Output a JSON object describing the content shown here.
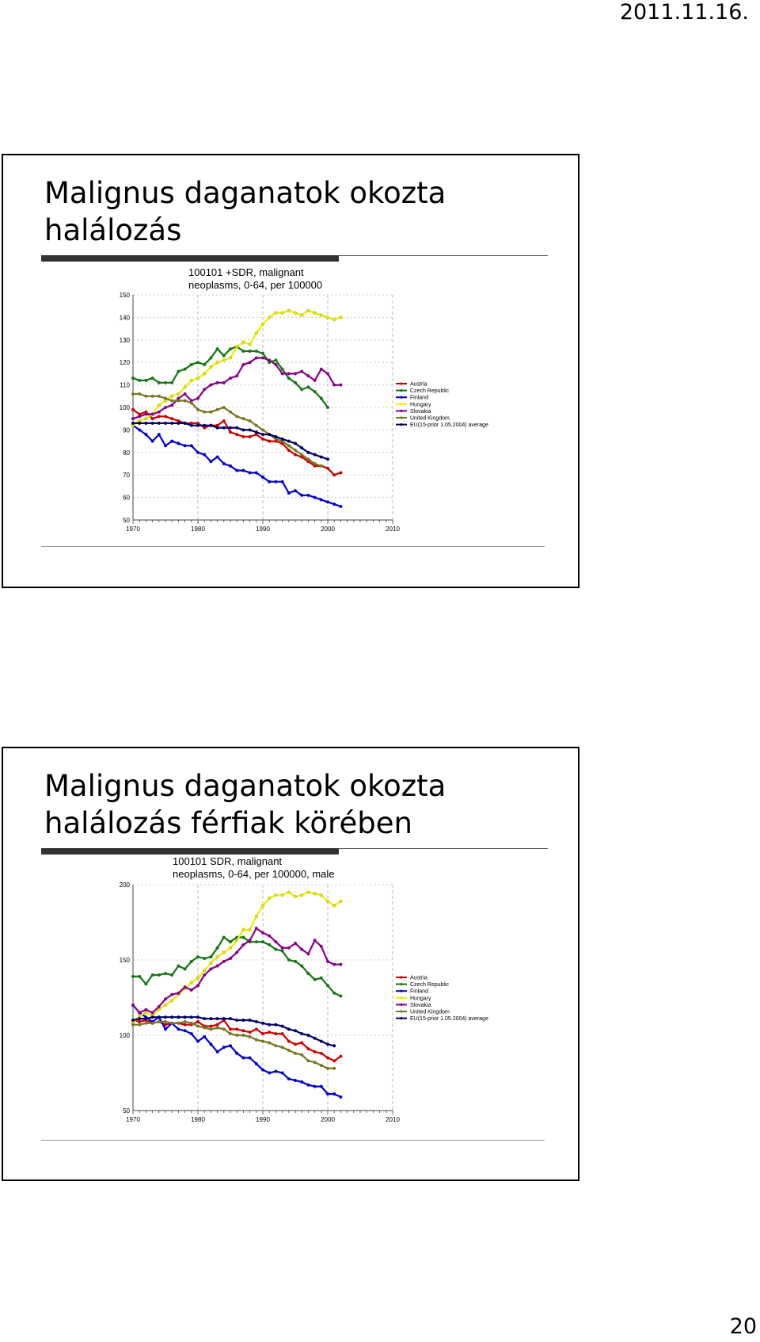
{
  "page": {
    "date": "2011.11.16.",
    "number": "20"
  },
  "slides": [
    {
      "title_line1": "Malignus daganatok okozta",
      "title_line2": "halálozás"
    },
    {
      "title_line1": "Malignus daganatok okozta",
      "title_line2": "halálozás férfiak körében"
    }
  ],
  "colors": {
    "Austria": "#cc0000",
    "Czech Republic": "#117711",
    "Finland": "#0000cc",
    "Hungary": "#eeee00",
    "Slovakia": "#880088",
    "United Kingdom": "#777722",
    "EU(15-prior 1.05.2004) average": "#000066"
  },
  "chart_data": [
    {
      "type": "line",
      "title_lines": [
        "100101 +SDR, malignant",
        "neoplasms, 0-64, per 100000"
      ],
      "xlim": [
        1970,
        2010
      ],
      "ylim": [
        50,
        150
      ],
      "xticks": [
        1970,
        1980,
        1990,
        2000,
        2010
      ],
      "yticks": [
        50,
        60,
        70,
        80,
        90,
        100,
        110,
        120,
        130,
        140,
        150
      ],
      "grid": true,
      "legend_position": "right",
      "series": [
        {
          "name": "Austria",
          "x0": 1970,
          "values": [
            99,
            97,
            98,
            95,
            96,
            96,
            95,
            94,
            93,
            93,
            93,
            91,
            92,
            92,
            94,
            89,
            88,
            87,
            87,
            88,
            86,
            85,
            85,
            84,
            81,
            79,
            78,
            76,
            74,
            74,
            73,
            70,
            71
          ]
        },
        {
          "name": "Czech Republic",
          "x0": 1970,
          "values": [
            113,
            112,
            112,
            113,
            111,
            111,
            111,
            116,
            117,
            119,
            120,
            119,
            122,
            126,
            123,
            126,
            127,
            125,
            125,
            125,
            124,
            120,
            121,
            117,
            113,
            111,
            108,
            109,
            107,
            104,
            100
          ]
        },
        {
          "name": "Finland",
          "x0": 1970,
          "values": [
            92,
            90,
            88,
            85,
            88,
            83,
            85,
            84,
            83,
            83,
            80,
            79,
            76,
            78,
            75,
            74,
            72,
            72,
            71,
            71,
            69,
            67,
            67,
            67,
            62,
            63,
            61,
            61,
            60,
            59,
            58,
            57,
            56
          ]
        },
        {
          "name": "Hungary",
          "x0": 1970,
          "values": [
            92,
            94,
            95,
            97,
            101,
            103,
            105,
            106,
            109,
            112,
            113,
            115,
            118,
            120,
            121,
            122,
            127,
            129,
            128,
            133,
            137,
            140,
            142,
            142,
            143,
            142,
            141,
            143,
            142,
            141,
            140,
            139,
            140
          ]
        },
        {
          "name": "Slovakia",
          "x0": 1970,
          "values": [
            95,
            96,
            97,
            97,
            98,
            100,
            101,
            104,
            106,
            103,
            104,
            108,
            110,
            111,
            111,
            113,
            114,
            119,
            120,
            122,
            122,
            121,
            119,
            115,
            115,
            115,
            116,
            114,
            112,
            117,
            115,
            110,
            110
          ]
        },
        {
          "name": "United Kingdom",
          "x0": 1970,
          "values": [
            106,
            106,
            105,
            105,
            105,
            104,
            103,
            103,
            103,
            102,
            99,
            98,
            98,
            99,
            100,
            98,
            96,
            95,
            94,
            92,
            90,
            88,
            86,
            85,
            83,
            81,
            79,
            77,
            75,
            74
          ]
        },
        {
          "name": "EU(15-prior 1.05.2004) average",
          "x0": 1970,
          "values": [
            93,
            93,
            93,
            93,
            93,
            93,
            93,
            93,
            93,
            92,
            92,
            92,
            92,
            91,
            91,
            91,
            91,
            90,
            90,
            89,
            88,
            88,
            87,
            86,
            85,
            84,
            82,
            80,
            79,
            78,
            77
          ]
        }
      ]
    },
    {
      "type": "line",
      "title_lines": [
        "100101 SDR, malignant",
        "neoplasms, 0-64, per 100000, male"
      ],
      "xlim": [
        1970,
        2010
      ],
      "ylim": [
        50,
        200
      ],
      "xticks": [
        1970,
        1980,
        1990,
        2000,
        2010
      ],
      "yticks": [
        50,
        100,
        150,
        200
      ],
      "grid": true,
      "legend_position": "right",
      "series": [
        {
          "name": "Austria",
          "x0": 1970,
          "values": [
            110,
            109,
            110,
            108,
            109,
            107,
            108,
            108,
            107,
            107,
            109,
            106,
            106,
            107,
            110,
            104,
            104,
            103,
            102,
            104,
            101,
            102,
            101,
            101,
            96,
            94,
            95,
            91,
            89,
            88,
            85,
            83,
            86
          ]
        },
        {
          "name": "Czech Republic",
          "x0": 1970,
          "values": [
            139,
            139,
            134,
            140,
            140,
            141,
            140,
            146,
            144,
            149,
            152,
            151,
            152,
            158,
            165,
            162,
            165,
            165,
            162,
            162,
            162,
            160,
            157,
            156,
            150,
            149,
            146,
            141,
            137,
            138,
            133,
            128,
            126
          ]
        },
        {
          "name": "Finland",
          "x0": 1970,
          "values": [
            120,
            115,
            112,
            109,
            112,
            104,
            108,
            104,
            103,
            101,
            96,
            99,
            94,
            89,
            92,
            93,
            88,
            85,
            85,
            81,
            77,
            75,
            76,
            75,
            71,
            70,
            69,
            67,
            66,
            66,
            61,
            61,
            59
          ]
        },
        {
          "name": "Hungary",
          "x0": 1970,
          "values": [
            108,
            113,
            115,
            113,
            117,
            120,
            123,
            127,
            131,
            135,
            138,
            143,
            148,
            152,
            155,
            158,
            163,
            170,
            170,
            179,
            186,
            191,
            193,
            193,
            195,
            192,
            193,
            195,
            194,
            193,
            189,
            186,
            189
          ]
        },
        {
          "name": "Slovakia",
          "x0": 1970,
          "values": [
            120,
            115,
            117,
            115,
            119,
            124,
            127,
            128,
            132,
            130,
            133,
            140,
            144,
            146,
            149,
            151,
            155,
            160,
            163,
            171,
            168,
            166,
            162,
            158,
            158,
            161,
            157,
            154,
            163,
            159,
            149,
            147,
            147
          ]
        },
        {
          "name": "United Kingdom",
          "x0": 1970,
          "values": [
            107,
            107,
            108,
            108,
            109,
            109,
            108,
            108,
            109,
            108,
            106,
            105,
            104,
            105,
            104,
            101,
            100,
            100,
            99,
            97,
            96,
            95,
            93,
            92,
            90,
            88,
            87,
            83,
            82,
            80,
            78,
            78
          ]
        },
        {
          "name": "EU(15-prior 1.05.2004) average",
          "x0": 1970,
          "values": [
            110,
            111,
            111,
            112,
            112,
            112,
            112,
            112,
            112,
            112,
            112,
            111,
            111,
            111,
            111,
            111,
            110,
            110,
            110,
            109,
            108,
            107,
            107,
            106,
            104,
            103,
            101,
            100,
            98,
            96,
            94,
            93
          ]
        }
      ]
    }
  ]
}
